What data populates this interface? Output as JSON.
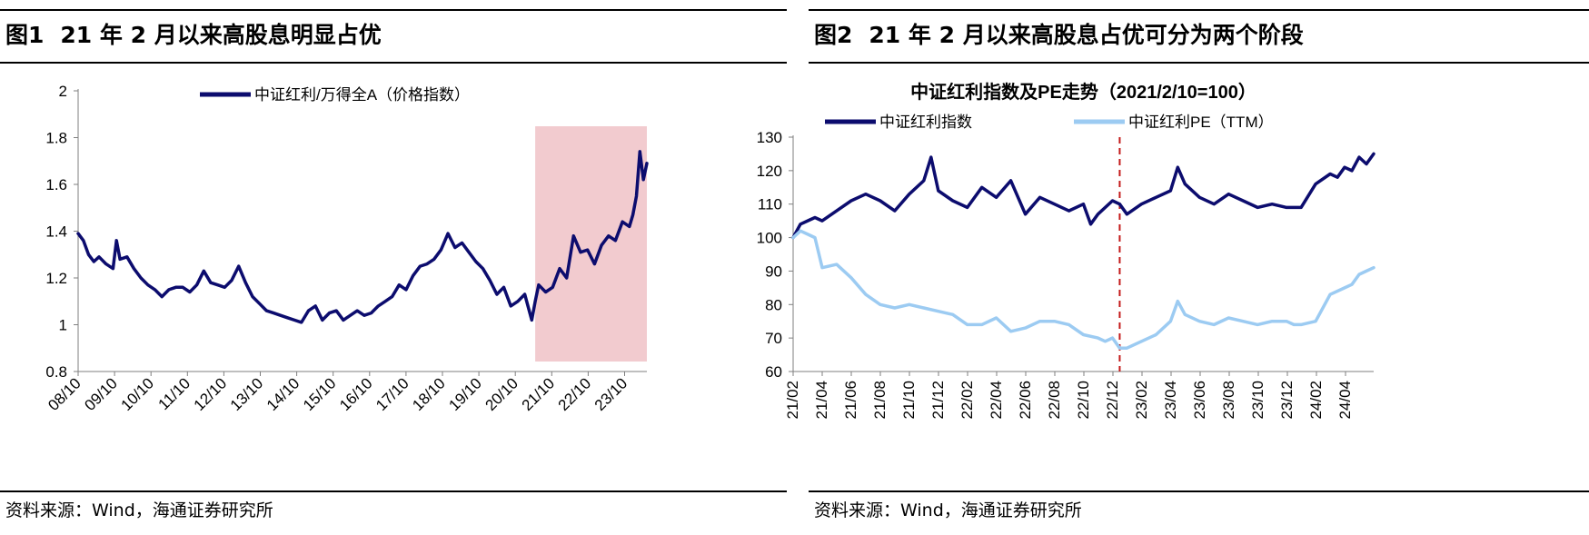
{
  "figures": [
    {
      "title_num": "图1",
      "title_text": "21 年 2 月以来高股息明显占优",
      "source": "资料来源：Wind，海通证券研究所"
    },
    {
      "title_num": "图2",
      "title_text": "21 年 2 月以来高股息占优可分为两个阶段",
      "source": "资料来源：Wind，海通证券研究所"
    }
  ],
  "chart_data": [
    {
      "type": "line",
      "title": "",
      "legend_position": "top-center",
      "grid": false,
      "x_ticks": [
        "08/10",
        "09/10",
        "10/10",
        "11/10",
        "12/10",
        "13/10",
        "14/10",
        "15/10",
        "16/10",
        "17/10",
        "18/10",
        "19/10",
        "20/10",
        "21/10",
        "22/10",
        "23/10"
      ],
      "xlim": [
        2008.0,
        2024.3
      ],
      "ylim": [
        0.8,
        2.0
      ],
      "y_ticks": [
        "0.8",
        "1",
        "1.2",
        "1.4",
        "1.6",
        "1.8",
        "2"
      ],
      "highlight_region": {
        "x": [
          2021.1,
          2024.3
        ],
        "color": "#f2cbcf"
      },
      "series": [
        {
          "name": "中证红利/万得全A（价格指数）",
          "color": "#0c0c6e",
          "x": [
            2008.0,
            2008.15,
            2008.3,
            2008.45,
            2008.6,
            2008.8,
            2009.0,
            2009.1,
            2009.2,
            2009.4,
            2009.6,
            2009.8,
            2010.0,
            2010.2,
            2010.4,
            2010.6,
            2010.8,
            2011.0,
            2011.2,
            2011.4,
            2011.6,
            2011.8,
            2012.0,
            2012.2,
            2012.4,
            2012.6,
            2012.8,
            2013.0,
            2013.2,
            2013.4,
            2013.6,
            2013.8,
            2014.0,
            2014.2,
            2014.4,
            2014.6,
            2014.8,
            2015.0,
            2015.2,
            2015.4,
            2015.6,
            2015.8,
            2016.0,
            2016.2,
            2016.4,
            2016.6,
            2016.8,
            2017.0,
            2017.2,
            2017.4,
            2017.6,
            2017.8,
            2018.0,
            2018.2,
            2018.4,
            2018.6,
            2018.8,
            2019.0,
            2019.2,
            2019.4,
            2019.6,
            2019.8,
            2020.0,
            2020.2,
            2020.4,
            2020.6,
            2020.8,
            2021.0,
            2021.1,
            2021.2,
            2021.4,
            2021.6,
            2021.8,
            2022.0,
            2022.2,
            2022.4,
            2022.6,
            2022.8,
            2023.0,
            2023.2,
            2023.4,
            2023.6,
            2023.8,
            2023.9,
            2024.0,
            2024.1,
            2024.2,
            2024.3
          ],
          "y": [
            1.39,
            1.36,
            1.3,
            1.27,
            1.29,
            1.26,
            1.24,
            1.36,
            1.28,
            1.29,
            1.24,
            1.2,
            1.17,
            1.15,
            1.12,
            1.15,
            1.16,
            1.16,
            1.14,
            1.17,
            1.23,
            1.18,
            1.17,
            1.16,
            1.19,
            1.25,
            1.18,
            1.12,
            1.09,
            1.06,
            1.05,
            1.04,
            1.03,
            1.02,
            1.01,
            1.06,
            1.08,
            1.02,
            1.05,
            1.06,
            1.02,
            1.04,
            1.06,
            1.04,
            1.05,
            1.08,
            1.1,
            1.12,
            1.17,
            1.15,
            1.21,
            1.25,
            1.26,
            1.28,
            1.32,
            1.39,
            1.33,
            1.35,
            1.31,
            1.27,
            1.24,
            1.19,
            1.13,
            1.16,
            1.08,
            1.1,
            1.13,
            1.02,
            1.1,
            1.17,
            1.14,
            1.16,
            1.24,
            1.2,
            1.38,
            1.31,
            1.32,
            1.26,
            1.34,
            1.38,
            1.36,
            1.44,
            1.42,
            1.47,
            1.55,
            1.74,
            1.62,
            1.69
          ]
        }
      ]
    },
    {
      "type": "line",
      "title": "中证红利指数及PE走势（2021/2/10=100）",
      "legend_position": "top-left",
      "grid": false,
      "x_ticks": [
        "21/02",
        "21/04",
        "21/06",
        "21/08",
        "21/10",
        "21/12",
        "22/02",
        "22/04",
        "22/06",
        "22/08",
        "22/10",
        "22/12",
        "23/02",
        "23/04",
        "23/06",
        "23/08",
        "23/10",
        "23/12",
        "24/02",
        "24/04"
      ],
      "xlim": [
        0,
        40
      ],
      "ylim": [
        60,
        130
      ],
      "y_ticks": [
        "60",
        "70",
        "80",
        "90",
        "100",
        "110",
        "120",
        "130"
      ],
      "vertical_marker": {
        "x": 22.5,
        "label": "",
        "color": "#c41a1a",
        "style": "dashed"
      },
      "series": [
        {
          "name": "中证红利指数",
          "color": "#0c0c6e",
          "x": [
            0,
            0.5,
            1,
            1.5,
            2,
            3,
            4,
            5,
            6,
            7,
            8,
            9,
            9.5,
            10,
            11,
            12,
            13,
            14,
            15,
            16,
            17,
            18,
            19,
            20,
            20.5,
            21,
            22,
            22.5,
            23,
            24,
            25,
            26,
            26.5,
            27,
            28,
            29,
            30,
            31,
            32,
            33,
            34,
            35,
            36,
            37,
            37.5,
            38,
            38.5,
            39,
            39.5,
            40
          ],
          "y": [
            100,
            104,
            105,
            106,
            105,
            108,
            111,
            113,
            111,
            108,
            113,
            117,
            124,
            114,
            111,
            109,
            115,
            112,
            117,
            107,
            112,
            110,
            108,
            110,
            104,
            107,
            111,
            110,
            107,
            110,
            112,
            114,
            121,
            116,
            112,
            110,
            113,
            111,
            109,
            110,
            109,
            109,
            116,
            119,
            118,
            121,
            120,
            124,
            122,
            125
          ]
        },
        {
          "name": "中证红利PE（TTM）",
          "color": "#9ccbf2",
          "x": [
            0,
            0.5,
            1,
            1.5,
            2,
            3,
            4,
            5,
            6,
            7,
            8,
            9,
            10,
            11,
            12,
            13,
            14,
            15,
            16,
            17,
            18,
            19,
            20,
            21,
            21.5,
            22,
            22.5,
            23,
            24,
            25,
            26,
            26.5,
            27,
            28,
            29,
            30,
            31,
            32,
            33,
            34,
            34.5,
            35,
            36,
            37,
            38,
            38.5,
            39,
            39.5,
            40
          ],
          "y": [
            100,
            102,
            101,
            100,
            91,
            92,
            88,
            83,
            80,
            79,
            80,
            79,
            78,
            77,
            74,
            74,
            76,
            72,
            73,
            75,
            75,
            74,
            71,
            70,
            69,
            70,
            67,
            67,
            69,
            71,
            75,
            81,
            77,
            75,
            74,
            76,
            75,
            74,
            75,
            75,
            74,
            74,
            75,
            83,
            85,
            86,
            89,
            90,
            91
          ]
        }
      ]
    }
  ]
}
